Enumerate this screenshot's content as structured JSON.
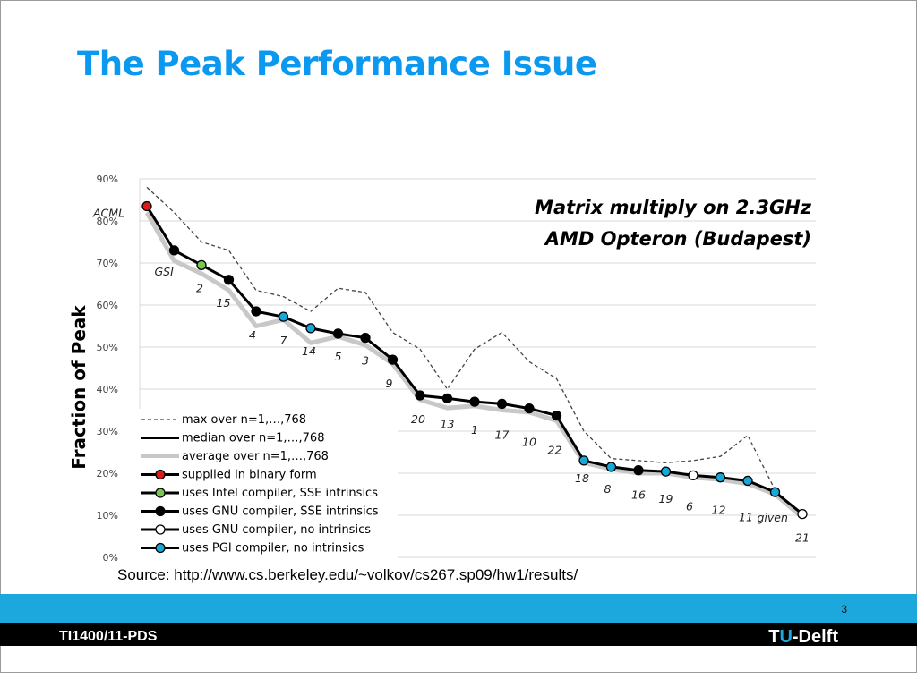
{
  "slide": {
    "title": "The Peak Performance Issue",
    "source": "Source: http://www.cs.berkeley.edu/~volkov/cs267.sp09/hw1/results/",
    "page_number": "3",
    "course_code": "TI1400/11-PDS",
    "logo": {
      "part1": "T",
      "part2": "U",
      "part3": "-Delft"
    },
    "colors": {
      "title": "#0a98f0",
      "band": "#1ca8dc",
      "footer": "#000000"
    }
  },
  "chart_data": {
    "type": "line",
    "title_lines": [
      "Matrix multiply on 2.3GHz",
      "AMD Opteron (Budapest)"
    ],
    "ylabel": "Fraction of Peak",
    "xlabel": "",
    "ylim": [
      0,
      90
    ],
    "yticks": [
      0,
      10,
      20,
      30,
      40,
      50,
      60,
      70,
      80,
      90
    ],
    "ytick_labels": [
      "0%",
      "10%",
      "20%",
      "30%",
      "40%",
      "50%",
      "60%",
      "70%",
      "80%",
      "90%"
    ],
    "grid": true,
    "legend_position": "bottom-left",
    "series": [
      {
        "name": "max over n=1,…,768",
        "style": "dashed",
        "color": "#444444",
        "values": [
          88,
          82,
          75,
          73,
          63.5,
          62,
          58.5,
          64,
          63,
          53.5,
          49.5,
          40,
          49.5,
          53.5,
          46.5,
          42.5,
          30,
          23.5,
          23,
          22.5,
          23,
          24,
          29,
          16,
          10
        ]
      },
      {
        "name": "median over n=1,…,768",
        "style": "solid",
        "color": "#000000",
        "values": [
          83.5,
          73,
          69.5,
          66,
          58.5,
          57.2,
          54.5,
          53.2,
          52.2,
          47,
          38.5,
          37.8,
          37,
          36.5,
          35.4,
          33.7,
          23,
          21.5,
          20.7,
          20.4,
          19.5,
          19,
          18.2,
          15.5,
          10.3
        ]
      },
      {
        "name": "average over n=1,…,768",
        "style": "solid",
        "color": "#c8c8c8",
        "values": [
          82,
          70.5,
          67.5,
          63.5,
          55,
          56.5,
          51,
          52.5,
          50.5,
          46,
          37.5,
          35.5,
          36,
          35,
          34.5,
          32.5,
          22.5,
          21,
          20,
          20,
          19,
          18.5,
          17.5,
          15,
          9.5
        ]
      }
    ],
    "marker_categories": [
      {
        "name": "supplied in binary form",
        "fill": "#e01818"
      },
      {
        "name": "uses Intel compiler, SSE intrinsics",
        "fill": "#78c850"
      },
      {
        "name": "uses GNU  compiler, SSE intrinsics",
        "fill": "#000000"
      },
      {
        "name": "uses GNU  compiler, no intrinsics",
        "fill": "#ffffff"
      },
      {
        "name": "uses PGI compiler, no intrinsics",
        "fill": "#18a8d8"
      }
    ],
    "points": [
      {
        "label": "ACML",
        "value": 83.5,
        "category": 0
      },
      {
        "label": "GSI",
        "value": 73,
        "category": 2
      },
      {
        "label": "2",
        "value": 69.5,
        "category": 1
      },
      {
        "label": "15",
        "value": 66,
        "category": 2
      },
      {
        "label": "4",
        "value": 58.5,
        "category": 2
      },
      {
        "label": "7",
        "value": 57.2,
        "category": 4
      },
      {
        "label": "14",
        "value": 54.5,
        "category": 4
      },
      {
        "label": "5",
        "value": 53.2,
        "category": 2
      },
      {
        "label": "3",
        "value": 52.2,
        "category": 2
      },
      {
        "label": "9",
        "value": 47,
        "category": 2
      },
      {
        "label": "20",
        "value": 38.5,
        "category": 2
      },
      {
        "label": "13",
        "value": 37.8,
        "category": 2
      },
      {
        "label": "1",
        "value": 37,
        "category": 2
      },
      {
        "label": "17",
        "value": 36.5,
        "category": 2
      },
      {
        "label": "10",
        "value": 35.4,
        "category": 2
      },
      {
        "label": "22",
        "value": 33.7,
        "category": 2
      },
      {
        "label": "18",
        "value": 23,
        "category": 4
      },
      {
        "label": "8",
        "value": 21.5,
        "category": 4
      },
      {
        "label": "16",
        "value": 20.7,
        "category": 2
      },
      {
        "label": "19",
        "value": 20.4,
        "category": 4
      },
      {
        "label": "6",
        "value": 19.5,
        "category": 3
      },
      {
        "label": "12",
        "value": 19,
        "category": 4
      },
      {
        "label": "11",
        "value": 18.2,
        "category": 4
      },
      {
        "label": "given",
        "value": 15.5,
        "category": 4
      },
      {
        "label": "21",
        "value": 10.3,
        "category": 3
      }
    ]
  }
}
